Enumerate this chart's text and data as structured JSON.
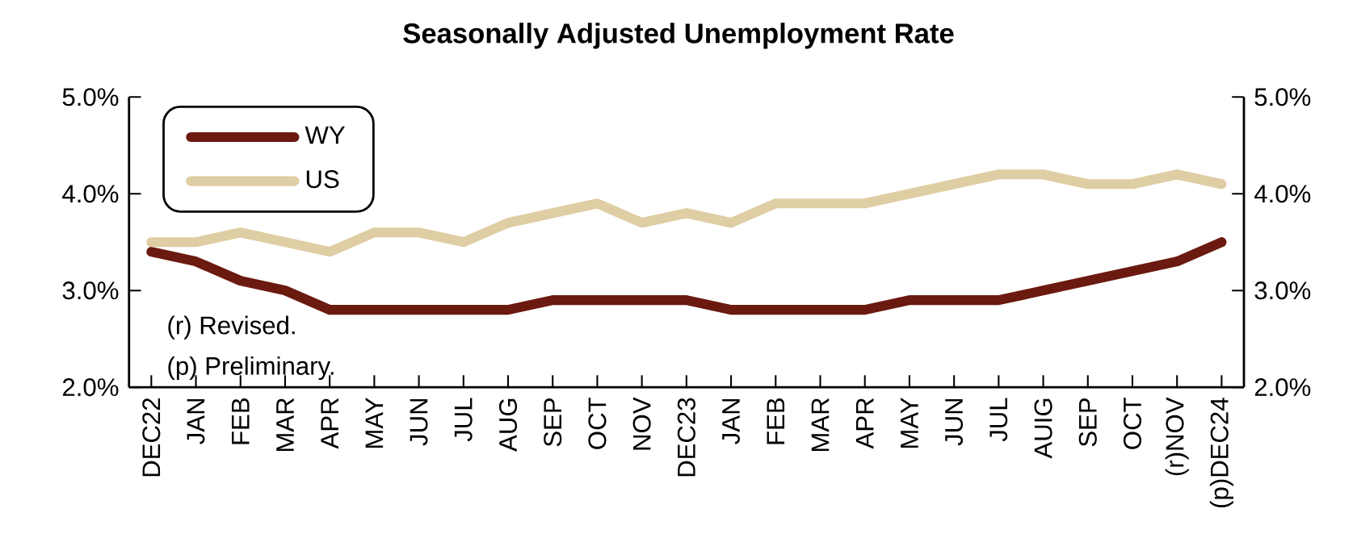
{
  "chart_data": {
    "type": "line",
    "title": "Seasonally Adjusted Unemployment Rate",
    "categories": [
      "DEC22",
      "JAN",
      "FEB",
      "MAR",
      "APR",
      "MAY",
      "JUN",
      "JUL",
      "AUG",
      "SEP",
      "OCT",
      "NOV",
      "DEC23",
      "JAN",
      "FEB",
      "MAR",
      "APR",
      "MAY",
      "JUN",
      "JUL",
      "AUIG",
      "SEP",
      "OCT",
      "(r)NOV",
      "(p)DEC24"
    ],
    "series": [
      {
        "name": "WY",
        "color": "#6b1a10",
        "values": [
          3.4,
          3.3,
          3.1,
          3.0,
          2.8,
          2.8,
          2.8,
          2.8,
          2.8,
          2.9,
          2.9,
          2.9,
          2.9,
          2.8,
          2.8,
          2.8,
          2.8,
          2.9,
          2.9,
          2.9,
          3.0,
          3.1,
          3.2,
          3.3,
          3.5
        ]
      },
      {
        "name": "US",
        "color": "#dfcda3",
        "values": [
          3.5,
          3.5,
          3.6,
          3.5,
          3.4,
          3.6,
          3.6,
          3.5,
          3.7,
          3.8,
          3.9,
          3.7,
          3.8,
          3.7,
          3.9,
          3.9,
          3.9,
          4.0,
          4.1,
          4.2,
          4.2,
          4.1,
          4.1,
          4.2,
          4.1
        ]
      }
    ],
    "ylim": [
      2.0,
      5.0
    ],
    "yticks": [
      {
        "value": 2.0,
        "label": "2.0%"
      },
      {
        "value": 3.0,
        "label": "3.0%"
      },
      {
        "value": 4.0,
        "label": "4.0%"
      },
      {
        "value": 5.0,
        "label": "5.0%"
      }
    ],
    "y2lim": [
      2.0,
      5.0
    ],
    "y2ticks": [
      {
        "value": 2.0,
        "label": "2.0%"
      },
      {
        "value": 3.0,
        "label": "3.0%"
      },
      {
        "value": 4.0,
        "label": "4.0%"
      },
      {
        "value": 5.0,
        "label": "5.0%"
      }
    ],
    "annotations": [
      "(r) Revised.",
      "(p) Preliminary."
    ],
    "legend": "top left",
    "grid": false,
    "marker": "none",
    "line_style": "solid"
  }
}
